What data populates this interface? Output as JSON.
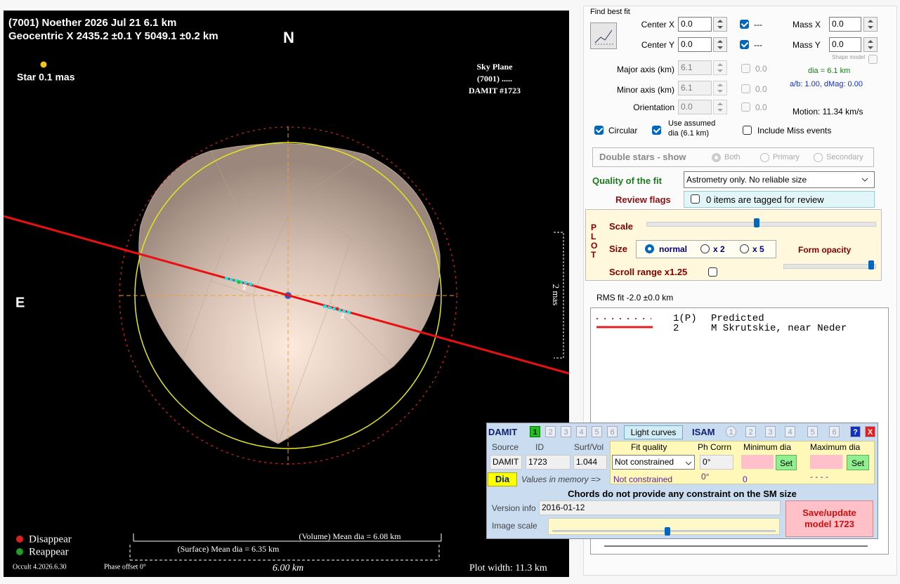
{
  "plot": {
    "title": "(7001) Noether  2026 Jul 21   6.1 km",
    "geocentric": "Geocentric X 2435.2 ±0.1 Y 5049.1 ±0.2 km",
    "north": "N",
    "east": "E",
    "star": "Star 0.1 mas",
    "sky_plane": [
      "Sky Plane",
      "(7001) .....",
      "DAMIT #1723"
    ],
    "scale_mas": "2 mas",
    "chord_labels": [
      "2",
      "2"
    ],
    "legend": [
      "Disappear",
      "Reappear"
    ],
    "volume_dia": "(Volume) Mean dia = 6.08 km",
    "surface_dia": "(Surface) Mean dia = 6.35 km",
    "version": "Occult 4.2026.6.30",
    "phase_offset": "Phase offset 0°",
    "scale_bar": "6.00 km",
    "plot_width": "Plot width: 11.3 km"
  },
  "fit": {
    "group": "Find best fit",
    "center_x": {
      "label": "Center X",
      "value": "0.0",
      "flag": "---"
    },
    "center_y": {
      "label": "Center Y",
      "value": "0.0",
      "flag": "---"
    },
    "mass_x": {
      "label": "Mass X",
      "value": "0.0"
    },
    "mass_y": {
      "label": "Mass Y",
      "value": "0.0"
    },
    "shape_model": "Shape model",
    "major_axis": {
      "label": "Major axis (km)",
      "value": "6.1",
      "step": "0.0"
    },
    "minor_axis": {
      "label": "Minor axis (km)",
      "value": "6.1",
      "step": "0.0"
    },
    "orientation": {
      "label": "Orientation",
      "value": "0.0",
      "step": "0.0"
    },
    "dia": "dia = 6.1 km",
    "ab": "a/b: 1.00, dMag: 0.00",
    "motion": "Motion: 11.34 km/s",
    "circular": "Circular",
    "use_assumed": [
      "Use assumed",
      "dia (6.1 km)"
    ],
    "include_miss": "Include Miss events",
    "double_stars": {
      "label": "Double stars - show",
      "options": [
        "Both",
        "Primary",
        "Secondary"
      ]
    },
    "quality": {
      "label": "Quality of the fit",
      "value": "Astrometry only. No reliable size"
    },
    "review": {
      "label": "Review flags",
      "value": "0 items are tagged for review"
    }
  },
  "plot_controls": {
    "side": [
      "P",
      "L",
      "O",
      "T"
    ],
    "scale": "Scale",
    "size": "Size",
    "size_options": [
      "normal",
      "x 2",
      "x 5"
    ],
    "form_opacity": "Form opacity",
    "scroll_range": "Scroll range x1.25"
  },
  "rms": "RMS fit -2.0 ±0.0 km",
  "observers": [
    {
      "id": "1(P)",
      "name": "Predicted"
    },
    {
      "id": "2",
      "name": "M Skrutskie, near Neder"
    }
  ],
  "damit": {
    "title": "DAMIT",
    "tabs": [
      "1",
      "2",
      "3",
      "4",
      "5",
      "6"
    ],
    "light_curves": "Light curves",
    "isam": "ISAM",
    "isam_tabs": [
      "1",
      "2",
      "3",
      "4",
      "5",
      "6"
    ],
    "help": "?",
    "close": "X",
    "headers": [
      "Source",
      "ID",
      "Surf/Vol",
      "Fit quality",
      "Ph Corrn",
      "Minimum dia",
      "Maximum dia"
    ],
    "row": {
      "source": "DAMIT",
      "id": "1723",
      "surf_vol": "1.044",
      "fit_quality": "Not constrained",
      "ph_corrn": "0°",
      "set_min": "Set",
      "set_max": "Set"
    },
    "memory": {
      "dia": "Dia",
      "label": "Values in memory =>",
      "fit_quality": "Not constrained",
      "ph_corrn": "0°",
      "min": "0",
      "max": "- - - -"
    },
    "note": "Chords do not provide any constraint on the SM size",
    "version_label": "Version info",
    "version": "2016-01-12",
    "image_scale": "Image scale",
    "save": [
      "Save/update",
      "model 1723"
    ]
  }
}
